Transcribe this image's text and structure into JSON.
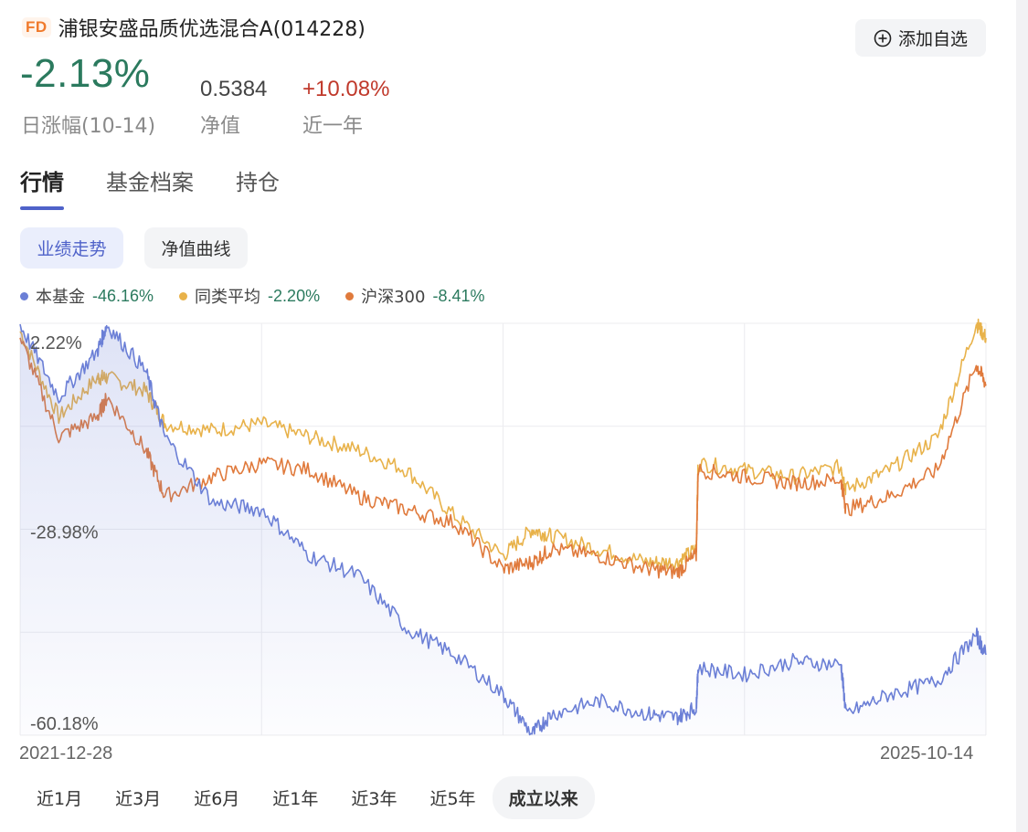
{
  "header": {
    "logo_text": "FD",
    "fund_name": "浦银安盛品质优选混合A(014228)",
    "add_button_label": "添加自选"
  },
  "stats": {
    "daily_change": "-2.13%",
    "daily_change_label": "日涨幅(10-14)",
    "nav": "0.5384",
    "nav_label": "净值",
    "year_change": "+10.08%",
    "year_change_label": "近一年"
  },
  "tabs": [
    {
      "label": "行情",
      "active": true
    },
    {
      "label": "基金档案",
      "active": false
    },
    {
      "label": "持仓",
      "active": false
    }
  ],
  "segments": [
    {
      "label": "业绩走势",
      "active": true
    },
    {
      "label": "净值曲线",
      "active": false
    }
  ],
  "colors": {
    "fund": "#6b7fd6",
    "peer": "#e8b24a",
    "index": "#e07a3c",
    "positive": "#c0392b",
    "negative": "#2b7a5e",
    "accent": "#4f62c9"
  },
  "legend": [
    {
      "name": "本基金",
      "value": "-46.16%",
      "color": "#6b7fd6"
    },
    {
      "name": "同类平均",
      "value": "-2.20%",
      "color": "#e8b24a"
    },
    {
      "name": "沪深300",
      "value": "-8.41%",
      "color": "#e07a3c"
    }
  ],
  "chart_data": {
    "type": "line",
    "x_start": "2021-12-28",
    "x_end": "2025-10-14",
    "y_ticks": [
      "2.22%",
      "-28.98%",
      "-60.18%"
    ],
    "ylim": [
      -60.18,
      2.22
    ],
    "x": [
      0,
      0.04,
      0.08,
      0.09,
      0.13,
      0.15,
      0.2,
      0.25,
      0.3,
      0.35,
      0.4,
      0.45,
      0.5,
      0.53,
      0.55,
      0.6,
      0.65,
      0.68,
      0.7,
      0.702,
      0.75,
      0.8,
      0.85,
      0.855,
      0.9,
      0.95,
      0.99,
      1.0
    ],
    "series": [
      {
        "name": "本基金",
        "color": "#6b7fd6",
        "values": [
          2,
          -9,
          -2,
          2,
          -5,
          -15,
          -25,
          -26,
          -33,
          -36,
          -44,
          -48,
          -54,
          -60,
          -57,
          -55,
          -57,
          -57.5,
          -56,
          -50,
          -51,
          -49,
          -49.5,
          -57,
          -54,
          -52,
          -45,
          -48
        ]
      },
      {
        "name": "同类平均",
        "color": "#e8b24a",
        "values": [
          1,
          -12,
          -6,
          -6,
          -8,
          -13,
          -14,
          -13,
          -15,
          -17,
          -20,
          -27,
          -33,
          -29,
          -30,
          -32,
          -34,
          -34,
          -32,
          -19,
          -20,
          -21,
          -19.5,
          -23,
          -20,
          -15,
          2.22,
          0
        ]
      },
      {
        "name": "沪深300",
        "color": "#e07a3c",
        "values": [
          0,
          -15,
          -12,
          -9,
          -17,
          -24,
          -21,
          -19,
          -20,
          -24,
          -26,
          -28,
          -35,
          -34,
          -32,
          -33,
          -35,
          -35.5,
          -33,
          -20,
          -21,
          -22,
          -21.5,
          -26,
          -24,
          -20,
          -4,
          -7
        ]
      }
    ]
  },
  "periods": [
    {
      "label": "近1月",
      "active": false
    },
    {
      "label": "近3月",
      "active": false
    },
    {
      "label": "近6月",
      "active": false
    },
    {
      "label": "近1年",
      "active": false
    },
    {
      "label": "近3年",
      "active": false
    },
    {
      "label": "近5年",
      "active": false
    },
    {
      "label": "成立以来",
      "active": true
    }
  ]
}
